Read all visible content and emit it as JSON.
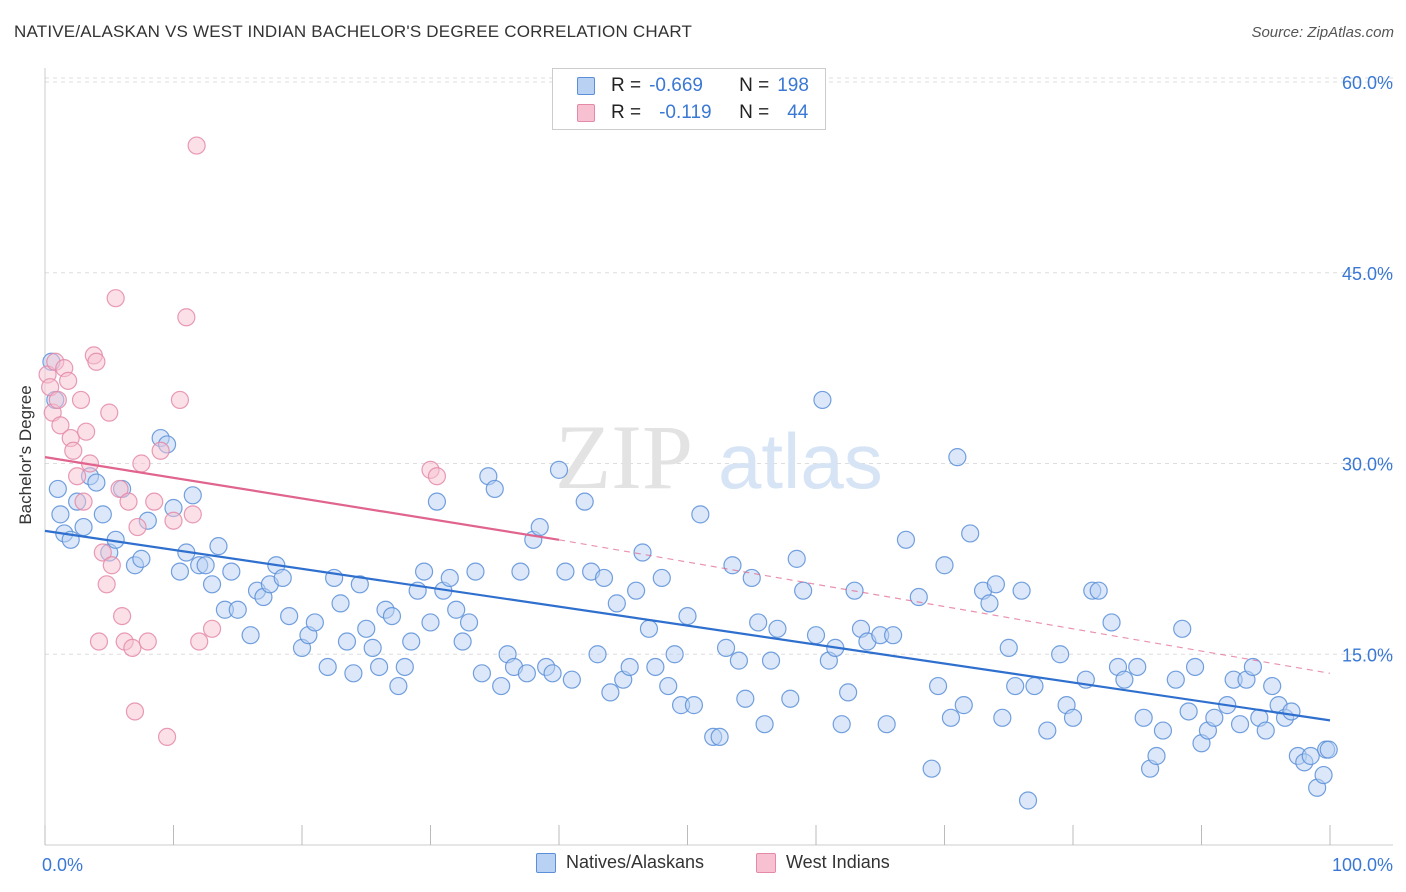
{
  "title": "NATIVE/ALASKAN VS WEST INDIAN BACHELOR'S DEGREE CORRELATION CHART",
  "source": "Source: ZipAtlas.com",
  "watermark": {
    "zip": "ZIP",
    "atlas": "atlas"
  },
  "legend": {
    "rows": [
      {
        "r_label": "R =",
        "r_value": "-0.669",
        "n_label": "N =",
        "n_value": "198"
      },
      {
        "r_label": "R =",
        "r_value": "-0.119",
        "n_label": "N =",
        "n_value": "44"
      }
    ]
  },
  "colors": {
    "blue_fill": "#b9d2f3",
    "blue_stroke": "#5b8fd8",
    "blue_line": "#2f6fce",
    "pink_fill": "#f7c1d2",
    "pink_stroke": "#e48aa8",
    "pink_line": "#e0648e",
    "grid": "#dddddd",
    "tick_text": "#3a78d4"
  },
  "chart_data": {
    "type": "scatter",
    "title": "NATIVE/ALASKAN VS WEST INDIAN BACHELOR'S DEGREE CORRELATION CHART",
    "xlabel": "",
    "ylabel": "Bachelor's Degree",
    "xlim": [
      0,
      100
    ],
    "ylim": [
      0,
      60
    ],
    "x_tick_labels": [
      "0.0%",
      "100.0%"
    ],
    "y_ticks": [
      15,
      30,
      45,
      60
    ],
    "y_tick_labels": [
      "15.0%",
      "30.0%",
      "45.0%",
      "60.0%"
    ],
    "grid": true,
    "legend_position": "top-center",
    "series": [
      {
        "name": "Natives/Alaskans",
        "color": "#b9d2f3",
        "r": -0.669,
        "n": 198,
        "trend": {
          "x": [
            0,
            100
          ],
          "y": [
            24.7,
            9.8
          ],
          "dashed_after_x": null
        },
        "points": [
          [
            0.5,
            38
          ],
          [
            0.8,
            35
          ],
          [
            1,
            28
          ],
          [
            1.2,
            26
          ],
          [
            1.5,
            24.5
          ],
          [
            2,
            24
          ],
          [
            2.5,
            27
          ],
          [
            3,
            25
          ],
          [
            3.5,
            29
          ],
          [
            4,
            28.5
          ],
          [
            4.5,
            26
          ],
          [
            5,
            23
          ],
          [
            5.5,
            24
          ],
          [
            6,
            28
          ],
          [
            7,
            22
          ],
          [
            7.5,
            22.5
          ],
          [
            8,
            25.5
          ],
          [
            9,
            32
          ],
          [
            9.5,
            31.5
          ],
          [
            10,
            26.5
          ],
          [
            10.5,
            21.5
          ],
          [
            11,
            23
          ],
          [
            11.5,
            27.5
          ],
          [
            12,
            22
          ],
          [
            12.5,
            22
          ],
          [
            13,
            20.5
          ],
          [
            13.5,
            23.5
          ],
          [
            14,
            18.5
          ],
          [
            14.5,
            21.5
          ],
          [
            15,
            18.5
          ],
          [
            16,
            16.5
          ],
          [
            16.5,
            20
          ],
          [
            17,
            19.5
          ],
          [
            17.5,
            20.5
          ],
          [
            18,
            22
          ],
          [
            18.5,
            21
          ],
          [
            19,
            18
          ],
          [
            20,
            15.5
          ],
          [
            20.5,
            16.5
          ],
          [
            21,
            17.5
          ],
          [
            22,
            14
          ],
          [
            22.5,
            21
          ],
          [
            23,
            19
          ],
          [
            23.5,
            16
          ],
          [
            24,
            13.5
          ],
          [
            24.5,
            20.5
          ],
          [
            25,
            17
          ],
          [
            25.5,
            15.5
          ],
          [
            26,
            14
          ],
          [
            26.5,
            18.5
          ],
          [
            27,
            18
          ],
          [
            27.5,
            12.5
          ],
          [
            28,
            14
          ],
          [
            28.5,
            16
          ],
          [
            29,
            20
          ],
          [
            29.5,
            21.5
          ],
          [
            30,
            17.5
          ],
          [
            30.5,
            27
          ],
          [
            31,
            20
          ],
          [
            31.5,
            21
          ],
          [
            32,
            18.5
          ],
          [
            32.5,
            16
          ],
          [
            33,
            17.5
          ],
          [
            33.5,
            21.5
          ],
          [
            34,
            13.5
          ],
          [
            34.5,
            29
          ],
          [
            35,
            28
          ],
          [
            35.5,
            12.5
          ],
          [
            36,
            15
          ],
          [
            36.5,
            14
          ],
          [
            37,
            21.5
          ],
          [
            37.5,
            13.5
          ],
          [
            38,
            24
          ],
          [
            38.5,
            25
          ],
          [
            39,
            14
          ],
          [
            39.5,
            13.5
          ],
          [
            40,
            29.5
          ],
          [
            40.5,
            21.5
          ],
          [
            41,
            13
          ],
          [
            42,
            27
          ],
          [
            42.5,
            21.5
          ],
          [
            43,
            15
          ],
          [
            43.5,
            21
          ],
          [
            44,
            12
          ],
          [
            44.5,
            19
          ],
          [
            45,
            13
          ],
          [
            45.5,
            14
          ],
          [
            46,
            20
          ],
          [
            46.5,
            23
          ],
          [
            47,
            17
          ],
          [
            47.5,
            14
          ],
          [
            48,
            21
          ],
          [
            48.5,
            12.5
          ],
          [
            49,
            15
          ],
          [
            49.5,
            11
          ],
          [
            50,
            18
          ],
          [
            50.5,
            11
          ],
          [
            51,
            26
          ],
          [
            52,
            8.5
          ],
          [
            52.5,
            8.5
          ],
          [
            53,
            15.5
          ],
          [
            53.5,
            22
          ],
          [
            54,
            14.5
          ],
          [
            54.5,
            11.5
          ],
          [
            55,
            21
          ],
          [
            55.5,
            17.5
          ],
          [
            56,
            9.5
          ],
          [
            56.5,
            14.5
          ],
          [
            57,
            17
          ],
          [
            58,
            11.5
          ],
          [
            58.5,
            22.5
          ],
          [
            59,
            20
          ],
          [
            60,
            16.5
          ],
          [
            60.5,
            35
          ],
          [
            61,
            14.5
          ],
          [
            61.5,
            15.5
          ],
          [
            62,
            9.5
          ],
          [
            62.5,
            12
          ],
          [
            63,
            20
          ],
          [
            63.5,
            17
          ],
          [
            64,
            16
          ],
          [
            65,
            16.5
          ],
          [
            65.5,
            9.5
          ],
          [
            66,
            16.5
          ],
          [
            67,
            24
          ],
          [
            68,
            19.5
          ],
          [
            69,
            6
          ],
          [
            69.5,
            12.5
          ],
          [
            70,
            22
          ],
          [
            70.5,
            10
          ],
          [
            71,
            30.5
          ],
          [
            71.5,
            11
          ],
          [
            72,
            24.5
          ],
          [
            73,
            20
          ],
          [
            73.5,
            19
          ],
          [
            74,
            20.5
          ],
          [
            74.5,
            10
          ],
          [
            75,
            15.5
          ],
          [
            75.5,
            12.5
          ],
          [
            76,
            20
          ],
          [
            76.5,
            3.5
          ],
          [
            77,
            12.5
          ],
          [
            78,
            9
          ],
          [
            79,
            15
          ],
          [
            79.5,
            11
          ],
          [
            80,
            10
          ],
          [
            81,
            13
          ],
          [
            81.5,
            20
          ],
          [
            82,
            20
          ],
          [
            83,
            17.5
          ],
          [
            83.5,
            14
          ],
          [
            84,
            13
          ],
          [
            85,
            14
          ],
          [
            85.5,
            10
          ],
          [
            86,
            6
          ],
          [
            86.5,
            7
          ],
          [
            87,
            9
          ],
          [
            88,
            13
          ],
          [
            88.5,
            17
          ],
          [
            89,
            10.5
          ],
          [
            89.5,
            14
          ],
          [
            90,
            8
          ],
          [
            90.5,
            9
          ],
          [
            91,
            10
          ],
          [
            92,
            11
          ],
          [
            92.5,
            13
          ],
          [
            93,
            9.5
          ],
          [
            93.5,
            13
          ],
          [
            94,
            14
          ],
          [
            94.5,
            10
          ],
          [
            95,
            9
          ],
          [
            95.5,
            12.5
          ],
          [
            96,
            11
          ],
          [
            96.5,
            10
          ],
          [
            97,
            10.5
          ],
          [
            97.5,
            7
          ],
          [
            98,
            6.5
          ],
          [
            98.5,
            7
          ],
          [
            99,
            4.5
          ],
          [
            99.5,
            5.5
          ],
          [
            99.7,
            7.5
          ],
          [
            99.9,
            7.5
          ]
        ]
      },
      {
        "name": "West Indians",
        "color": "#f7c1d2",
        "r": -0.119,
        "n": 44,
        "trend": {
          "x": [
            0,
            40,
            100
          ],
          "y": [
            30.5,
            24,
            13.5
          ],
          "dashed_after_x": 40
        },
        "points": [
          [
            0.2,
            37
          ],
          [
            0.4,
            36
          ],
          [
            0.6,
            34
          ],
          [
            0.8,
            38
          ],
          [
            1,
            35
          ],
          [
            1.2,
            33
          ],
          [
            1.5,
            37.5
          ],
          [
            1.8,
            36.5
          ],
          [
            2,
            32
          ],
          [
            2.2,
            31
          ],
          [
            2.5,
            29
          ],
          [
            2.8,
            35
          ],
          [
            3,
            27
          ],
          [
            3.2,
            32.5
          ],
          [
            3.5,
            30
          ],
          [
            3.8,
            38.5
          ],
          [
            4,
            38
          ],
          [
            4.2,
            16
          ],
          [
            4.5,
            23
          ],
          [
            4.8,
            20.5
          ],
          [
            5,
            34
          ],
          [
            5.2,
            22
          ],
          [
            5.5,
            43
          ],
          [
            5.8,
            28
          ],
          [
            6,
            18
          ],
          [
            6.2,
            16
          ],
          [
            6.5,
            27
          ],
          [
            6.8,
            15.5
          ],
          [
            7,
            10.5
          ],
          [
            7.2,
            25
          ],
          [
            7.5,
            30
          ],
          [
            8,
            16
          ],
          [
            8.5,
            27
          ],
          [
            9,
            31
          ],
          [
            9.5,
            8.5
          ],
          [
            10,
            25.5
          ],
          [
            10.5,
            35
          ],
          [
            11,
            41.5
          ],
          [
            11.5,
            26
          ],
          [
            11.8,
            55
          ],
          [
            12,
            16
          ],
          [
            13,
            17
          ],
          [
            30,
            29.5
          ],
          [
            30.5,
            29
          ]
        ]
      }
    ]
  },
  "bottom_legend": [
    {
      "label": "Natives/Alaskans"
    },
    {
      "label": "West Indians"
    }
  ]
}
